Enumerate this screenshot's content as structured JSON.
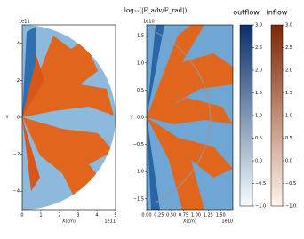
{
  "title": "log₁₀(|F_adv/F_rad|)",
  "chart_data": [
    {
      "type": "heatmap",
      "xlabel": "X(cm)",
      "ylabel": "Y",
      "xoffset": "1e11",
      "yoffset": "1e11",
      "xlim": [
        0,
        5
      ],
      "xticks": [
        0,
        1,
        2,
        3,
        4,
        5
      ],
      "ylim": [
        -5,
        5
      ],
      "yticks": [
        {
          "value": -4,
          "label": "−4"
        },
        {
          "value": -2,
          "label": "−2"
        },
        0,
        2,
        4
      ]
    },
    {
      "type": "heatmap",
      "xlabel": "X(cm)",
      "ylabel": "Y",
      "xoffset": "1e10",
      "yoffset": "1e10",
      "xlim": [
        0,
        1.75
      ],
      "xticks": [
        {
          "value": 0,
          "label": "0.00"
        },
        {
          "value": 0.25,
          "label": "0.25"
        },
        {
          "value": 0.5,
          "label": "0.50"
        },
        {
          "value": 0.75,
          "label": "0.75"
        },
        {
          "value": 1,
          "label": "1.00"
        },
        {
          "value": 1.25,
          "label": "1.25"
        },
        {
          "value": 1.5,
          "label": "1.50"
        }
      ],
      "ylim": [
        -1.7,
        1.7
      ],
      "yticks": [
        {
          "value": -1.5,
          "label": "−1.5"
        },
        {
          "value": -1,
          "label": "−1.0"
        },
        {
          "value": -0.5,
          "label": "−0.5"
        },
        {
          "value": 0,
          "label": "0.0"
        },
        {
          "value": 0.5,
          "label": "0.5"
        },
        {
          "value": 1,
          "label": "1.0"
        },
        {
          "value": 1.5,
          "label": "1.5"
        }
      ]
    },
    {
      "type": "colorbar",
      "label": "outflow",
      "colors": [
        "#f7fbff",
        "#08306b"
      ],
      "ylim": [
        -1,
        3
      ],
      "yticks": [
        {
          "value": -1,
          "label": "−1.0"
        },
        {
          "value": -0.5,
          "label": "−0.5"
        },
        {
          "value": 0,
          "label": "0.0"
        },
        {
          "value": 0.5,
          "label": "0.5"
        },
        {
          "value": 1,
          "label": "1.0"
        },
        {
          "value": 1.5,
          "label": "1.5"
        },
        {
          "value": 2,
          "label": "2.0"
        },
        {
          "value": 2.5,
          "label": "2.5"
        },
        {
          "value": 3,
          "label": "3.0"
        }
      ]
    },
    {
      "type": "colorbar",
      "label": "inflow",
      "colors": [
        "#fff5eb",
        "#7f2704"
      ],
      "ylim": [
        -1,
        3
      ],
      "yticks": [
        {
          "value": -1,
          "label": "−1.0"
        },
        {
          "value": -0.5,
          "label": "−0.5"
        },
        {
          "value": 0,
          "label": "0.0"
        },
        {
          "value": 0.5,
          "label": "0.5"
        },
        {
          "value": 1,
          "label": "1.0"
        },
        {
          "value": 1.5,
          "label": "1.5"
        },
        {
          "value": 2,
          "label": "2.0"
        },
        {
          "value": 2.5,
          "label": "2.5"
        },
        {
          "value": 3,
          "label": "3.0"
        }
      ]
    }
  ]
}
